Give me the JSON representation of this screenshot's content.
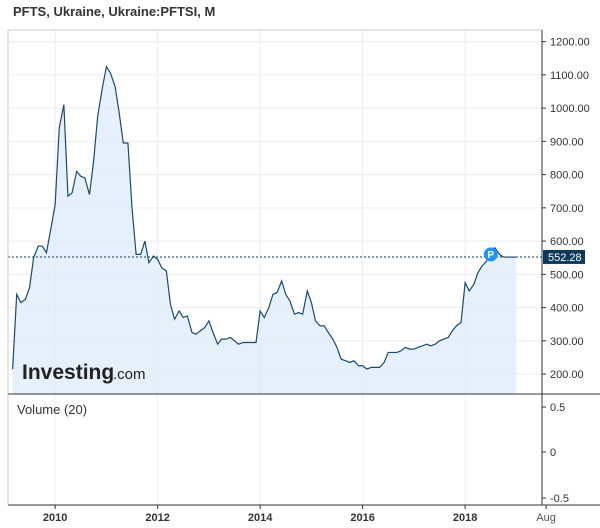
{
  "chart_data": {
    "type": "area",
    "title": "PFTS, Ukraine, Ukraine:PFTSI, M",
    "x_ticks": [
      "2010",
      "2012",
      "2014",
      "2016",
      "2018",
      "Aug"
    ],
    "y_ticks": [
      "1200.00",
      "1100.00",
      "1000.00",
      "900.00",
      "800.00",
      "700.00",
      "600.00",
      "500.00",
      "400.00",
      "300.00",
      "200.00"
    ],
    "ylim": [
      140,
      1235
    ],
    "xlim": [
      2009.08,
      2019.5
    ],
    "last_value": 552.28,
    "last_value_label": "552.28",
    "marker_label": "P",
    "line_color": "#1a4a70",
    "fill_color": "#ddebf8",
    "grid": true,
    "series": [
      {
        "x": [
          2009.17,
          2009.25,
          2009.33,
          2009.42,
          2009.5,
          2009.58,
          2009.67,
          2009.75,
          2009.83,
          2009.92,
          2010.0,
          2010.08,
          2010.17,
          2010.25,
          2010.33,
          2010.42,
          2010.5,
          2010.58,
          2010.67,
          2010.75,
          2010.83,
          2010.92,
          2011.0,
          2011.08,
          2011.17,
          2011.25,
          2011.33,
          2011.42,
          2011.5,
          2011.58,
          2011.67,
          2011.75,
          2011.83,
          2011.92,
          2012.0,
          2012.08,
          2012.17,
          2012.25,
          2012.33,
          2012.42,
          2012.5,
          2012.58,
          2012.67,
          2012.75,
          2012.83,
          2012.92,
          2013.0,
          2013.08,
          2013.17,
          2013.25,
          2013.33,
          2013.42,
          2013.5,
          2013.58,
          2013.67,
          2013.75,
          2013.83,
          2013.92,
          2014.0,
          2014.08,
          2014.17,
          2014.25,
          2014.33,
          2014.42,
          2014.5,
          2014.58,
          2014.67,
          2014.75,
          2014.83,
          2014.92,
          2015.0,
          2015.08,
          2015.17,
          2015.25,
          2015.33,
          2015.42,
          2015.5,
          2015.58,
          2015.67,
          2015.75,
          2015.83,
          2015.92,
          2016.0,
          2016.08,
          2016.17,
          2016.25,
          2016.33,
          2016.42,
          2016.5,
          2016.58,
          2016.67,
          2016.75,
          2016.83,
          2016.92,
          2017.0,
          2017.08,
          2017.17,
          2017.25,
          2017.33,
          2017.42,
          2017.5,
          2017.58,
          2017.67,
          2017.75,
          2017.83,
          2017.92,
          2018.0,
          2018.08,
          2018.17,
          2018.25,
          2018.33,
          2018.42,
          2018.5,
          2018.58,
          2018.67,
          2018.75,
          2018.83,
          2018.92,
          2019.0
        ],
        "y": [
          215,
          440,
          415,
          425,
          460,
          550,
          585,
          585,
          565,
          640,
          710,
          940,
          1010,
          735,
          745,
          810,
          795,
          790,
          740,
          840,
          975,
          1060,
          1125,
          1105,
          1065,
          985,
          895,
          895,
          700,
          560,
          560,
          600,
          535,
          555,
          545,
          520,
          510,
          410,
          365,
          390,
          370,
          375,
          325,
          320,
          330,
          340,
          360,
          325,
          290,
          305,
          305,
          310,
          300,
          290,
          295,
          295,
          295,
          295,
          390,
          370,
          400,
          440,
          445,
          480,
          440,
          420,
          380,
          385,
          380,
          450,
          415,
          360,
          345,
          345,
          325,
          305,
          280,
          245,
          240,
          235,
          240,
          225,
          225,
          215,
          220,
          220,
          220,
          235,
          265,
          265,
          265,
          270,
          280,
          275,
          275,
          280,
          285,
          290,
          285,
          290,
          300,
          305,
          310,
          330,
          345,
          355,
          475,
          450,
          470,
          505,
          525,
          540,
          570,
          580,
          560,
          552,
          552,
          552,
          552
        ]
      }
    ]
  },
  "volume_panel": {
    "label": "Volume (20)",
    "y_ticks": [
      "0.5",
      "0",
      "-0.5"
    ]
  },
  "brand": {
    "main": "Investing",
    "sub": ".com"
  }
}
